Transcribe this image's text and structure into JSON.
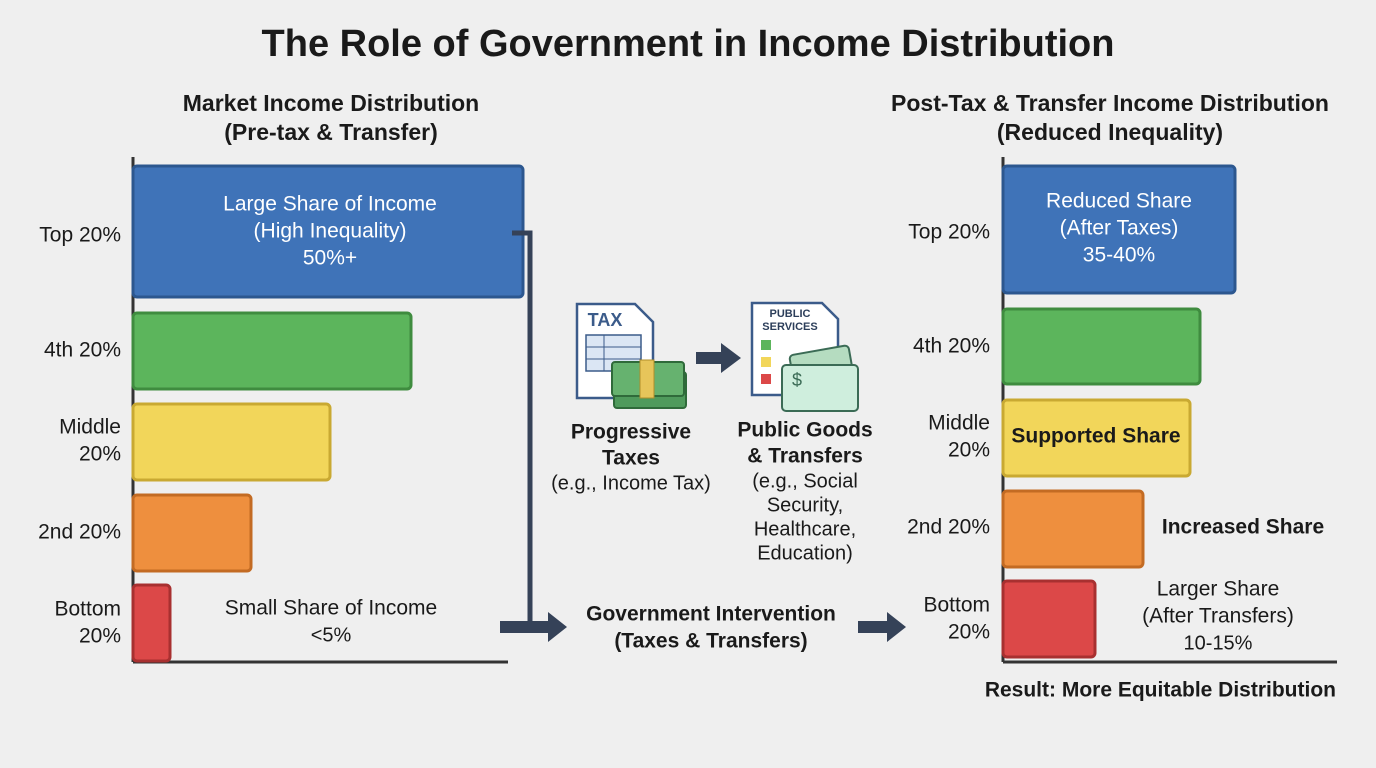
{
  "title": "The Role of Government in Income Distribution",
  "market": {
    "title": [
      "Market Income Distribution",
      "(Pre-tax & Transfer)"
    ],
    "rows": [
      {
        "label": [
          "Top 20%"
        ],
        "text": [
          "Large Share of Income",
          "(High Inequality)",
          "50%+"
        ]
      },
      {
        "label": [
          "4th 20%"
        ]
      },
      {
        "label": [
          "Middle",
          "20%"
        ]
      },
      {
        "label": [
          "2nd 20%"
        ]
      },
      {
        "label": [
          "Bottom",
          "20%"
        ],
        "text": [
          "Small Share of Income",
          "<5%"
        ]
      }
    ]
  },
  "intervention": {
    "tax_icon": "TAX",
    "services_icon": [
      "PUBLIC",
      "SERVICES"
    ],
    "taxes": {
      "title": [
        "Progressive",
        "Taxes"
      ],
      "note": [
        "(e.g., Income Tax)"
      ]
    },
    "transfers": {
      "title": [
        "Public Goods",
        "& Transfers"
      ],
      "note": [
        "(e.g., Social",
        "Security,",
        "Healthcare,",
        "Education)"
      ]
    },
    "label": [
      "Government Intervention",
      "(Taxes & Transfers)"
    ]
  },
  "post": {
    "title": [
      "Post-Tax & Transfer Income Distribution",
      "(Reduced Inequality)"
    ],
    "rows": [
      {
        "label": [
          "Top 20%"
        ],
        "text": [
          "Reduced Share",
          "(After Taxes)",
          "35-40%"
        ]
      },
      {
        "label": [
          "4th 20%"
        ]
      },
      {
        "label": [
          "Middle",
          "20%"
        ],
        "text": [
          "Supported Share"
        ]
      },
      {
        "label": [
          "2nd 20%"
        ],
        "text": [
          "Increased Share"
        ]
      },
      {
        "label": [
          "Bottom",
          "20%"
        ],
        "text": [
          "Larger Share",
          "(After Transfers)",
          "10-15%"
        ]
      }
    ]
  },
  "result": "Result: More Equitable Distribution"
}
